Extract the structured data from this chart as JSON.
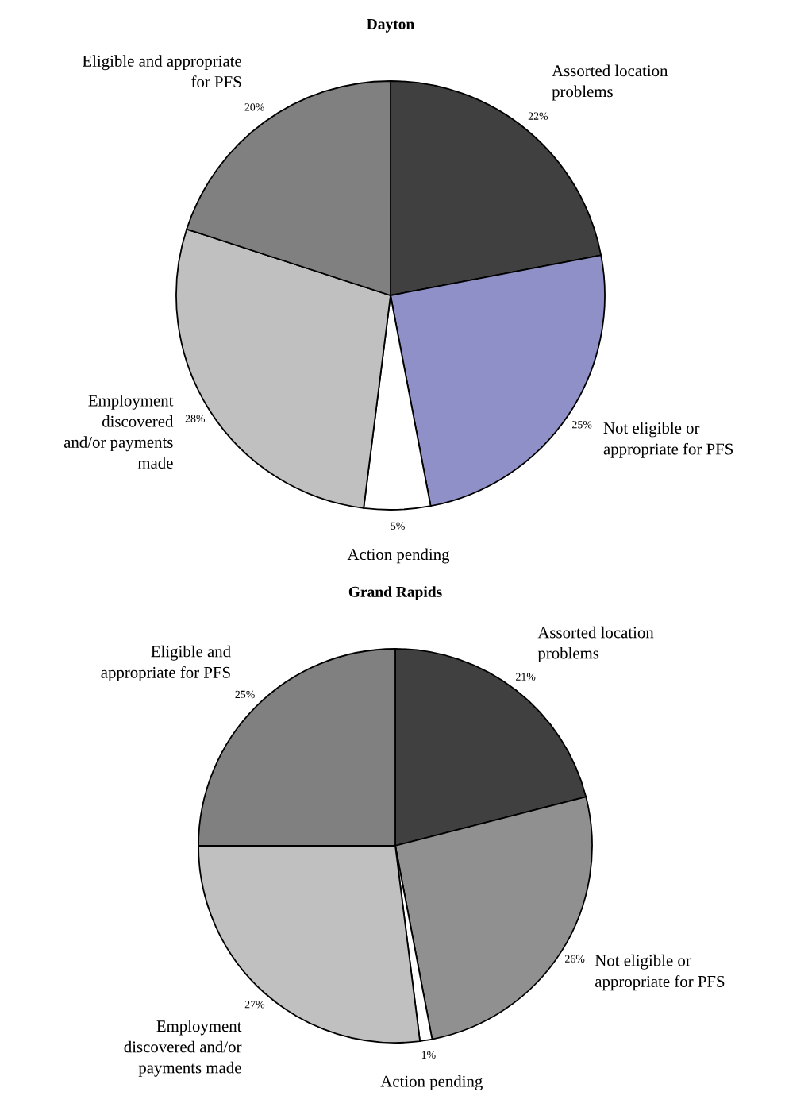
{
  "chart_data": [
    {
      "type": "pie",
      "title": "Dayton",
      "categories": [
        "Assorted location\nproblems",
        "Not eligible or\nappropriate for PFS",
        "Action pending",
        "Employment\ndiscovered\nand/or payments\nmade",
        "Eligible and appropriate\nfor PFS"
      ],
      "values": [
        22,
        25,
        5,
        28,
        20
      ],
      "value_labels": [
        "22%",
        "25%",
        "5%",
        "28%",
        "20%"
      ],
      "colors": [
        "#404040",
        "#9090c8",
        "#ffffff",
        "#c0c0c0",
        "#808080"
      ]
    },
    {
      "type": "pie",
      "title": "Grand Rapids",
      "categories": [
        "Assorted location\nproblems",
        "Not eligible or\nappropriate for PFS",
        "Action pending",
        "Employment\ndiscovered and/or\npayments made",
        "Eligible and\nappropriate for PFS"
      ],
      "values": [
        21,
        26,
        1,
        27,
        25
      ],
      "value_labels": [
        "21%",
        "26%",
        "1%",
        "27%",
        "25%"
      ],
      "colors": [
        "#404040",
        "#909090",
        "#ffffff",
        "#c0c0c0",
        "#808080"
      ]
    }
  ]
}
